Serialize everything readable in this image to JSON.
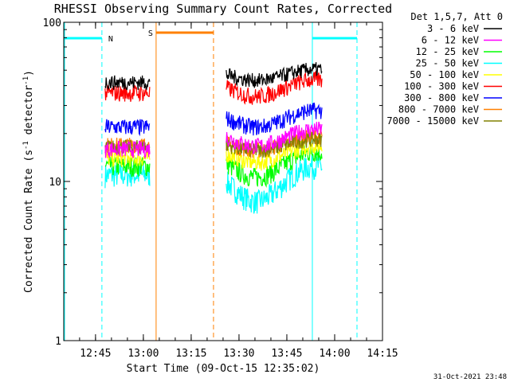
{
  "chart_data": {
    "type": "line",
    "title": "RHESSI Observing Summary Count Rates, Corrected",
    "xlabel": "Start Time (09-Oct-15 12:35:02)",
    "ylabel": "Corrected Count Rate (s⁻¹ detector⁻¹)",
    "ylabel_main": "Corrected Count Rate (s",
    "ylabel_sup1": "-1",
    "ylabel_mid": " detector",
    "ylabel_sup2": "-1",
    "ylabel_end": ")",
    "y_scale": "log",
    "ylim": [
      1,
      100
    ],
    "xlim": [
      "12:35:02",
      "14:15:00"
    ],
    "x_tick_labels": [
      "12:45",
      "13:00",
      "13:15",
      "13:30",
      "13:45",
      "14:00",
      "14:15"
    ],
    "y_tick_labels": [
      "1",
      "10",
      "100"
    ],
    "legend_title": "Det 1,5,7, Att 0",
    "legend_placement": "right",
    "timestamp": "31-Oct-2021 23:48",
    "segments": [
      [
        "12:48:00",
        "13:02:00"
      ],
      [
        "13:26:00",
        "13:56:00"
      ]
    ],
    "series": [
      {
        "name": "3 - 6 keV",
        "color": "#000000",
        "level_seg1": 42,
        "level_seg2": 47,
        "modulation": 0.08
      },
      {
        "name": "6 - 12 keV",
        "color": "#ff00ff",
        "level_seg1": 16,
        "level_seg2": 19,
        "modulation": 0.12
      },
      {
        "name": "12 - 25 keV",
        "color": "#00ff00",
        "level_seg1": 12.5,
        "level_seg2": 13,
        "modulation": 0.18
      },
      {
        "name": "25 - 50 keV",
        "color": "#00ffff",
        "level_seg1": 11,
        "level_seg2": 10,
        "modulation": 0.25
      },
      {
        "name": "50 - 100 keV",
        "color": "#ffff00",
        "level_seg1": 14,
        "level_seg2": 15,
        "modulation": 0.12
      },
      {
        "name": "100 - 300 keV",
        "color": "#ff0000",
        "level_seg1": 36,
        "level_seg2": 39,
        "modulation": 0.12
      },
      {
        "name": "300 - 800 keV",
        "color": "#0000ff",
        "level_seg1": 22,
        "level_seg2": 25,
        "modulation": 0.12
      },
      {
        "name": "800 - 7000 keV",
        "color": "#ff8000",
        "level_seg1": 17,
        "level_seg2": 17.5,
        "modulation": 0.1
      },
      {
        "name": "7000 - 15000 keV",
        "color": "#808000",
        "level_seg1": 16.5,
        "level_seg2": 17,
        "modulation": 0.08
      }
    ],
    "flags": [
      {
        "label": "N",
        "color": "#00ffff",
        "intervals": [
          [
            "12:35:02",
            "12:47:00"
          ],
          [
            "13:53:00",
            "14:07:00"
          ]
        ],
        "boundaries": [
          "12:47:00",
          "13:53:00",
          "14:07:00"
        ]
      },
      {
        "label": "S",
        "color": "#ff8000",
        "intervals": [
          [
            "13:04:00",
            "13:22:00"
          ]
        ],
        "boundaries": [
          "13:04:00",
          "13:22:00"
        ]
      }
    ]
  }
}
